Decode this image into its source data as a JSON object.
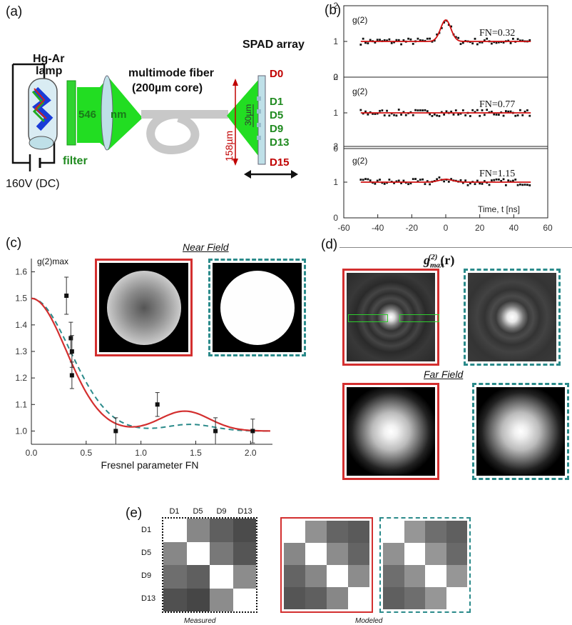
{
  "panels": {
    "a": {
      "label": "(a)",
      "lamp_label_line1": "Hg-Ar",
      "lamp_label_line2": "lamp",
      "filter_label": "filter",
      "voltage_label": "160V (DC)",
      "wavelength_value": "546",
      "wavelength_unit": "nm",
      "fiber_label_line1": "multimode fiber",
      "fiber_label_line2": "(200µm core)",
      "spad_label": "SPAD array",
      "detectors": [
        {
          "name": "D0",
          "color": "#c00000"
        },
        {
          "name": "D1",
          "color": "#1f8a1f"
        },
        {
          "name": "D5",
          "color": "#1f8a1f"
        },
        {
          "name": "D9",
          "color": "#1f8a1f"
        },
        {
          "name": "D13",
          "color": "#1f8a1f"
        },
        {
          "name": "D15",
          "color": "#c00000"
        }
      ],
      "dim_158": "158µm",
      "dim_30": "30µm",
      "colors": {
        "green": "#22dd22",
        "filter": "#2fd32f",
        "fiber": "#c8c8c8",
        "lens": "#bfe0e8"
      }
    },
    "b": {
      "label": "(b)",
      "ylabel": "g(2)",
      "subplots": [
        {
          "fn_label": "FN=0.32",
          "peak": 1.6,
          "width": 3
        },
        {
          "fn_label": "FN=0.77",
          "peak": 1.0,
          "width": 3
        },
        {
          "fn_label": "FN=1.15",
          "peak": 1.08,
          "width": 4
        }
      ],
      "yticks": [
        "0",
        "1",
        "2"
      ],
      "xticks": [
        "-60",
        "-40",
        "-20",
        "0",
        "20",
        "40",
        "60"
      ],
      "xlabel": "Time, t [ns]"
    },
    "c": {
      "label": "(c)",
      "ylabel": "g(2)max",
      "xlabel": "Fresnel parameter FN",
      "near_field_title": "Near Field",
      "xticks": [
        "0.0",
        "0.5",
        "1.0",
        "1.5",
        "2.0"
      ],
      "yticks": [
        "1.0",
        "1.1",
        "1.2",
        "1.3",
        "1.4",
        "1.5",
        "1.6"
      ]
    },
    "d": {
      "label": "(d)",
      "title_main": "g",
      "title_sub": "max",
      "title_sup": "(2)",
      "title_arg": "(r)",
      "far_field_title": "Far Field"
    },
    "e": {
      "label": "(e)",
      "col_labels": [
        "D1",
        "D5",
        "D9",
        "D13"
      ],
      "row_labels": [
        "D1",
        "D5",
        "D9",
        "D13"
      ],
      "measured_label": "Measured",
      "modeled_label": "Modeled",
      "measured": [
        [
          255,
          135,
          95,
          75
        ],
        [
          135,
          255,
          120,
          85
        ],
        [
          110,
          95,
          255,
          140
        ],
        [
          80,
          70,
          140,
          255
        ]
      ],
      "modeled_solid": [
        [
          255,
          145,
          100,
          90
        ],
        [
          135,
          255,
          140,
          100
        ],
        [
          100,
          135,
          255,
          140
        ],
        [
          85,
          95,
          135,
          255
        ]
      ],
      "modeled_dashed": [
        [
          255,
          150,
          110,
          95
        ],
        [
          145,
          255,
          150,
          105
        ],
        [
          110,
          145,
          255,
          150
        ],
        [
          95,
          110,
          150,
          255
        ]
      ]
    }
  },
  "chart_data": [
    {
      "type": "line",
      "xlabel": "Time, t [ns]",
      "ylabel": "g(2)",
      "xlim": [
        -60,
        60
      ],
      "ylim": [
        0,
        2
      ],
      "series": [
        {
          "name": "FN=0.32",
          "x": [
            -50,
            -40,
            -30,
            -20,
            -10,
            -5,
            0,
            5,
            10,
            20,
            30,
            40,
            50
          ],
          "values": [
            1.0,
            1.0,
            1.0,
            1.0,
            1.0,
            1.05,
            1.6,
            1.05,
            1.0,
            1.0,
            1.0,
            1.0,
            1.0
          ]
        },
        {
          "name": "FN=0.77",
          "x": [
            -50,
            -40,
            -30,
            -20,
            -10,
            0,
            10,
            20,
            30,
            40,
            50
          ],
          "values": [
            1.0,
            1.0,
            1.0,
            1.0,
            1.0,
            1.0,
            1.0,
            1.0,
            1.0,
            1.0,
            1.0
          ]
        },
        {
          "name": "FN=1.15",
          "x": [
            -50,
            -40,
            -30,
            -20,
            -10,
            0,
            10,
            20,
            30,
            40,
            50
          ],
          "values": [
            1.0,
            1.0,
            1.0,
            1.0,
            1.0,
            1.08,
            1.0,
            1.0,
            1.0,
            1.0,
            1.0
          ]
        }
      ]
    },
    {
      "type": "line",
      "xlabel": "Fresnel parameter FN",
      "ylabel": "g(2)max",
      "xlim": [
        0,
        2.2
      ],
      "ylim": [
        0.95,
        1.65
      ],
      "series": [
        {
          "name": "",
          "x": [
            0.0,
            0.2,
            0.4,
            0.6,
            0.8,
            1.0,
            1.2,
            1.4,
            1.6,
            1.8,
            2.0,
            2.2
          ],
          "values": [
            1.5,
            1.45,
            1.28,
            1.08,
            1.0,
            1.02,
            1.06,
            1.075,
            1.05,
            1.01,
            1.0,
            1.0
          ]
        },
        {
          "name": "",
          "x": [
            0.0,
            0.2,
            0.4,
            0.6,
            0.8,
            1.0,
            1.2,
            1.4,
            1.6,
            1.8,
            2.0,
            2.2
          ],
          "values": [
            1.5,
            1.44,
            1.32,
            1.12,
            1.03,
            1.0,
            1.015,
            1.025,
            1.015,
            1.0,
            1.0,
            1.0
          ]
        },
        {
          "name": "",
          "x": [
            0.32,
            0.36,
            0.37,
            0.37,
            0.77,
            1.15,
            1.68,
            2.02
          ],
          "values": [
            1.51,
            1.35,
            1.3,
            1.21,
            1.0,
            1.1,
            1.0,
            1.0
          ],
          "err": [
            0.07,
            0.06,
            0.06,
            0.05,
            0.05,
            0.045,
            0.05,
            0.045
          ]
        }
      ]
    }
  ]
}
